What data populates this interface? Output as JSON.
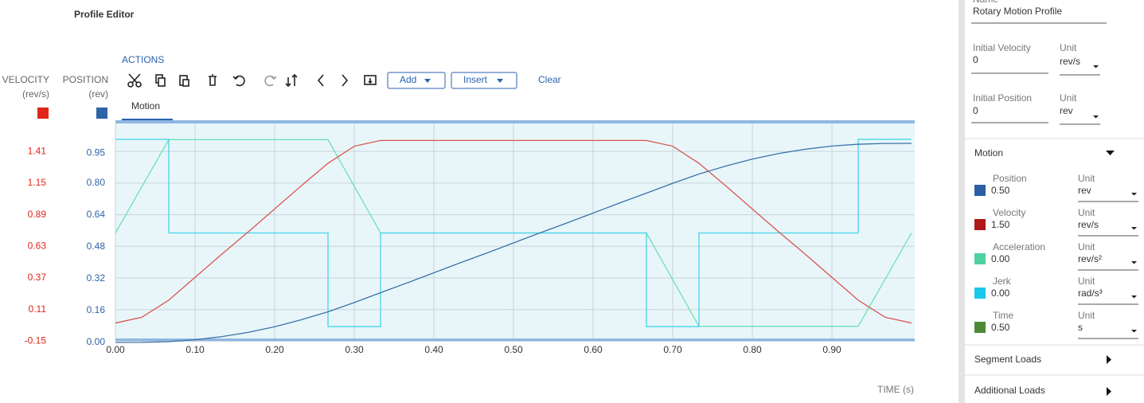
{
  "header": {
    "title": "Profile Editor"
  },
  "toolbar": {
    "section": "ACTIONS",
    "add": "Add",
    "insert": "Insert",
    "clear": "Clear",
    "tab": "Motion"
  },
  "chart_data": {
    "type": "line",
    "xlabel": "TIME (s)",
    "ylabel": "VELOCITY",
    "yunit": "(rev/s)",
    "ycolor": "#e0261b",
    "y2label": "POSITION",
    "y2unit": "(rev)",
    "y2color": "#2f64a6",
    "xlim": [
      0,
      1
    ],
    "xticks": [
      {
        "value": 0,
        "label": "0.00"
      },
      {
        "value": 0.1,
        "label": "0.10"
      },
      {
        "value": 0.2,
        "label": "0.20"
      },
      {
        "value": 0.3,
        "label": "0.30"
      },
      {
        "value": 0.4,
        "label": "0.40"
      },
      {
        "value": 0.5,
        "label": "0.50"
      },
      {
        "value": 0.6,
        "label": "0.60"
      },
      {
        "value": 0.7,
        "label": "0.70"
      },
      {
        "value": 0.8,
        "label": "0.80"
      },
      {
        "value": 0.9,
        "label": "0.90"
      }
    ],
    "ylim": [
      -0.16,
      1.64
    ],
    "yticks": [
      1.41,
      1.15,
      0.89,
      0.63,
      0.37,
      0.11,
      -0.15
    ],
    "y2lim": [
      0,
      1.1
    ],
    "y2ticks": [
      0.95,
      {
        "value": 0.8,
        "label": "0.80"
      },
      0.64,
      0.48,
      0.32,
      0.16,
      {
        "value": 0,
        "label": "0.00"
      }
    ],
    "grid": true,
    "series": [
      {
        "color": "#6ee0b6",
        "ylim": [
          -6.6,
          6.6
        ],
        "x": [
          0,
          0.067,
          0.267,
          0.333,
          0.667,
          0.733,
          0.933,
          1.0
        ],
        "values": [
          0,
          5.625,
          5.625,
          0,
          0,
          -5.625,
          -5.625,
          0
        ]
      },
      {
        "color": "#45d5ea",
        "ylim": [
          -620,
          620
        ],
        "x": [
          0,
          0.067,
          0.067,
          0.267,
          0.267,
          0.333,
          0.333,
          0.667,
          0.667,
          0.733,
          0.733,
          0.933,
          0.933,
          1.0
        ],
        "values": [
          530,
          530,
          0,
          0,
          -530,
          -530,
          0,
          0,
          -530,
          -530,
          0,
          0,
          530,
          530
        ]
      },
      {
        "color": "#d9564c",
        "x": [
          0,
          0.033,
          0.067,
          0.1,
          0.133,
          0.167,
          0.2,
          0.233,
          0.267,
          0.3,
          0.333,
          0.367,
          0.4,
          0.433,
          0.467,
          0.5,
          0.533,
          0.567,
          0.6,
          0.633,
          0.667,
          0.7,
          0.733,
          0.767,
          0.8,
          0.833,
          0.867,
          0.9,
          0.933,
          0.967,
          1.0
        ],
        "values": [
          0,
          0.0469,
          0.1875,
          0.375,
          0.5625,
          0.75,
          0.9375,
          1.125,
          1.3125,
          1.4531,
          1.5,
          1.5,
          1.5,
          1.5,
          1.5,
          1.5,
          1.5,
          1.5,
          1.5,
          1.5,
          1.5,
          1.4531,
          1.3125,
          1.125,
          0.9375,
          0.75,
          0.5625,
          0.375,
          0.1875,
          0.0469,
          0
        ]
      },
      {
        "color": "#3b73a8",
        "axis": "y2",
        "x": [
          0,
          0.033,
          0.067,
          0.1,
          0.133,
          0.167,
          0.2,
          0.233,
          0.267,
          0.3,
          0.333,
          0.367,
          0.4,
          0.433,
          0.467,
          0.5,
          0.533,
          0.567,
          0.6,
          0.633,
          0.667,
          0.7,
          0.733,
          0.767,
          0.8,
          0.833,
          0.867,
          0.9,
          0.933,
          0.967,
          1.0
        ],
        "values": [
          0,
          0.00052,
          0.00417,
          0.01354,
          0.02917,
          0.05104,
          0.07917,
          0.11354,
          0.15417,
          0.20052,
          0.25,
          0.3,
          0.35,
          0.4,
          0.45,
          0.5,
          0.55,
          0.6,
          0.65,
          0.7,
          0.75,
          0.79948,
          0.84583,
          0.88646,
          0.92083,
          0.94896,
          0.97083,
          0.98646,
          0.99583,
          0.99948,
          1
        ]
      }
    ]
  },
  "panel": {
    "name_label": "Name",
    "name": "Rotary Motion Profile",
    "initial_velocity": {
      "label": "Initial Velocity",
      "value": "0",
      "unit_label": "Unit",
      "unit": "rev/s"
    },
    "initial_position": {
      "label": "Initial Position",
      "value": "0",
      "unit_label": "Unit",
      "unit": "rev"
    },
    "motion": {
      "title": "Motion",
      "items": [
        {
          "label": "Position",
          "color": "#2a5fa4",
          "value": "0.50",
          "unit_label": "Unit",
          "unit": "rev"
        },
        {
          "label": "Velocity",
          "color": "#b01818",
          "value": "1.50",
          "unit_label": "Unit",
          "unit": "rev/s"
        },
        {
          "label": "Acceleration",
          "color": "#4fd0a0",
          "value": "0.00",
          "unit_label": "Unit",
          "unit": "rev/s²"
        },
        {
          "label": "Jerk",
          "color": "#1ac8ea",
          "value": "0.00",
          "unit_label": "Unit",
          "unit": "rad/s³"
        },
        {
          "label": "Time",
          "color": "#4e8a36",
          "value": "0.50",
          "unit_label": "Unit",
          "unit": "s"
        }
      ]
    },
    "segment_loads": "Segment Loads",
    "additional_loads": "Additional Loads"
  }
}
